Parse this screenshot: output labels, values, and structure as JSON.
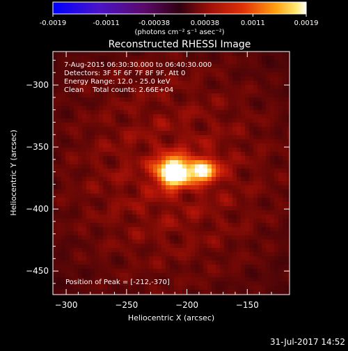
{
  "chart_data": {
    "type": "heatmap",
    "title": "Reconstructed RHESSI Image",
    "xlabel": "Heliocentric X (arcsec)",
    "ylabel": "Heliocentric Y (arcsec)",
    "xlim": [
      -311,
      -115
    ],
    "ylim": [
      -469,
      -273
    ],
    "x_ticks": [
      -300,
      -250,
      -200,
      -150
    ],
    "y_ticks": [
      -300,
      -350,
      -400,
      -450
    ],
    "colorbar": {
      "label": "(photons cm⁻² s⁻¹ asec⁻²)",
      "range": [
        -0.0019,
        0.0019
      ],
      "tick_values": [
        -0.0019,
        -0.0011,
        -0.00038,
        0.00038,
        0.0011,
        0.0019
      ],
      "tick_labels": [
        "-0.0019",
        "-0.0011",
        "-0.00038",
        "0.00038",
        "0.0011",
        "0.0019"
      ],
      "colormap": "blue-purple-red-orange-yellow-white"
    },
    "annotations": [
      "7-Aug-2015 06:30:30.000 to 06:40:30.000",
      "Detectors: 3F 5F 6F 7F 8F 9F, Att 0",
      "Energy Range: 12.0 - 25.0 keV",
      "Clean    Total counts: 2.66E+04"
    ],
    "peak_label": "Position of Peak = [-212,-370]",
    "peak": {
      "x": -212,
      "y": -370,
      "value": 0.0019
    },
    "sources": [
      {
        "x": -212,
        "y": -370,
        "sigma_x": 9,
        "sigma_y": 8,
        "value": 0.0019
      },
      {
        "x": -188,
        "y": -369,
        "sigma_x": 10,
        "sigma_y": 7,
        "value": 0.00135
      }
    ],
    "background_level": 0.00055
  },
  "footer": {
    "timestamp": "31-Jul-2017 14:52"
  },
  "colors": {
    "background": "#000000",
    "foreground": "#ffffff"
  }
}
